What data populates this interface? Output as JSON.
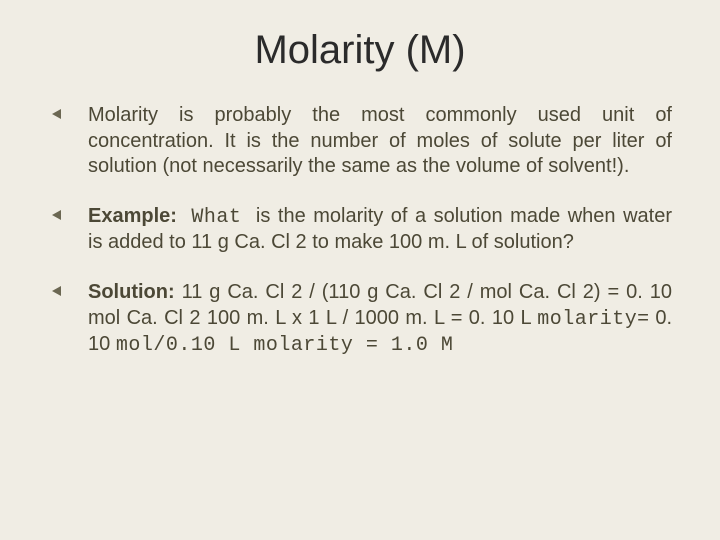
{
  "slide": {
    "title": "Molarity (M)",
    "background_color": "#f0ede4",
    "title_color": "#2b2b2b",
    "text_color": "#4c4836",
    "bullet_color": "#6b6752",
    "title_fontsize": 40,
    "body_fontsize": 20,
    "bullets": [
      {
        "type": "plain",
        "text": "Molarity is probably the most commonly used unit of concentration. It is the number of moles of solute per liter of solution (not necessarily the same as the volume of solvent!)."
      },
      {
        "type": "example",
        "label": "Example:",
        "mono_lead": " What ",
        "rest": " is the molarity of a solution made when water is added to 11 g Ca. Cl 2 to make 100 m. L of solution?"
      },
      {
        "type": "solution",
        "label": "Solution:",
        "part1": " 11 g Ca. Cl 2 / (110 g Ca. Cl 2 / mol Ca. Cl 2) = 0. 10 mol Ca. Cl 2 100 m. L x 1 L / 1000 m. L = 0. 10 L ",
        "mono1": "molarity",
        "part2": "= 0. 10 ",
        "mono2": "mol/0.10 L molarity = 1.0 M"
      }
    ]
  }
}
